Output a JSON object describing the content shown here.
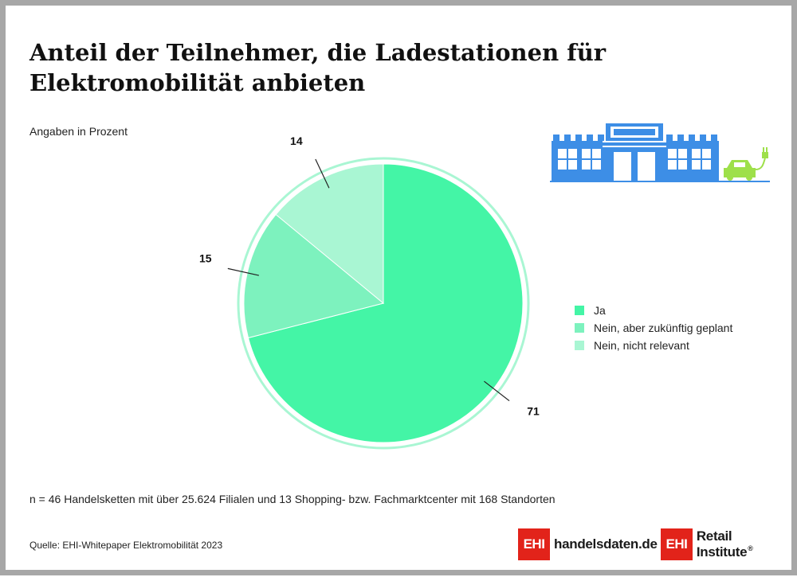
{
  "title": "Anteil der Teilnehmer, die Ladestationen für Elektromobilität anbieten",
  "subtitle": "Angaben in Prozent",
  "chart_data": {
    "type": "pie",
    "categories": [
      "Ja",
      "Nein, aber zukünftig geplant",
      "Nein, nicht relevant"
    ],
    "values": [
      71,
      15,
      14
    ],
    "labels": [
      "71",
      "15",
      "14"
    ],
    "colors": [
      "#44f5a6",
      "#7df2be",
      "#a9f6d3"
    ],
    "ring_color": "#a9f6d3",
    "legend_position": "right"
  },
  "legend": [
    {
      "label": "Ja",
      "color": "#44f5a6"
    },
    {
      "label": "Nein, aber zukünftig geplant",
      "color": "#7df2be"
    },
    {
      "label": "Nein, nicht relevant",
      "color": "#a9f6d3"
    }
  ],
  "footnote": "n = 46 Handelsketten mit über 25.624 Filialen und 13 Shopping- bzw. Fachmarktcenter mit 168 Standorten",
  "source": "Quelle: EHI-Whitepaper Elektromobilität 2023",
  "logos": {
    "box_text": "EHI",
    "handelsdaten_text": "handelsdaten.de",
    "retail_text": "Retail Institute",
    "reg_mark": "®",
    "color": "#e2231a"
  },
  "illustration": {
    "building_color": "#3d8ee6",
    "car_color": "#9ee04a",
    "icons": [
      "store-building-icon",
      "electric-car-icon",
      "charging-plug-icon"
    ]
  }
}
